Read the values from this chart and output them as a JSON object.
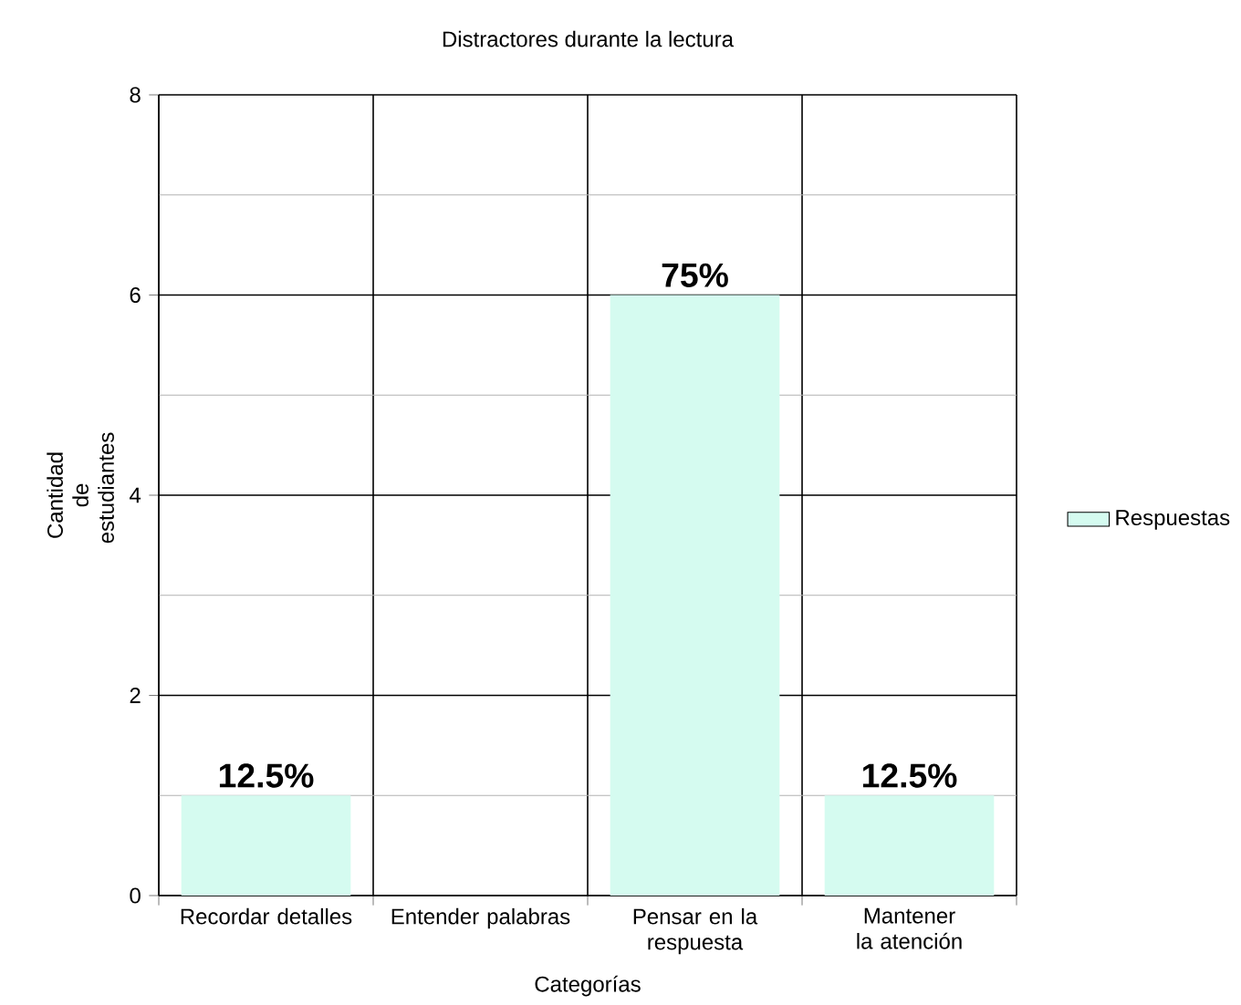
{
  "chart_data": {
    "type": "bar",
    "title": "Distractores durante la lectura",
    "xlabel": "Categorías",
    "ylabel": "Cantidad de estudiantes",
    "categories": [
      "Recordar detalles",
      "Entender palabras",
      "Pensar en la respuesta",
      "Mantener la atención"
    ],
    "series": [
      {
        "name": "Respuestas",
        "color": "#d5fbf0",
        "values": [
          1,
          0,
          6,
          1
        ]
      }
    ],
    "annotations": [
      {
        "text": "12.5%",
        "x": "Recordar detalles",
        "y": 1
      },
      {
        "text": "75%",
        "x": "Pensar en la respuesta",
        "y": 6
      },
      {
        "text": "12.5%",
        "x": "Mantener la atención",
        "y": 1
      }
    ],
    "ylim": [
      0,
      8
    ],
    "yticks": [
      0,
      2,
      4,
      6,
      8
    ],
    "grid": true,
    "legend": "right"
  }
}
